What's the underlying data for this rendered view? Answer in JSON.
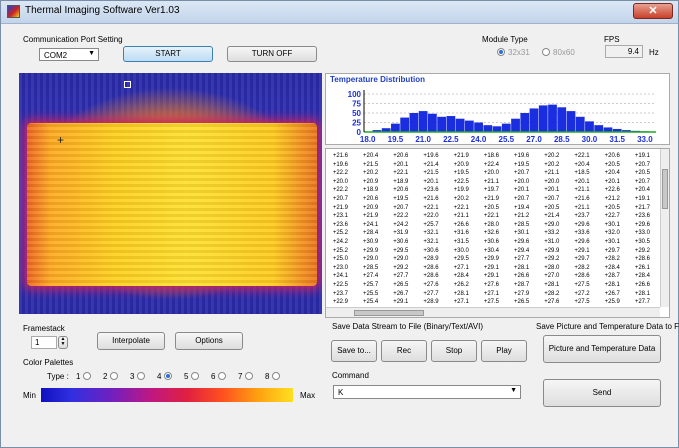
{
  "window": {
    "title": "Thermal Imaging Software   Ver1.03",
    "close_glyph": "✕"
  },
  "comm": {
    "section_label": "Communication Port Setting",
    "port": "COM2",
    "start_label": "START",
    "turn_off_label": "TURN OFF"
  },
  "module": {
    "label": "Module Type",
    "options": [
      "32x31",
      "80x60"
    ],
    "selected": "32x31"
  },
  "fps": {
    "label": "FPS",
    "value": "9.4",
    "unit": "Hz"
  },
  "histogram": {
    "title": "Temperature Distribution",
    "y_ticks": [
      "100",
      "75",
      "50",
      "25",
      "0"
    ],
    "x_ticks": [
      "18.0",
      "19.5",
      "21.0",
      "22.5",
      "24.0",
      "25.5",
      "27.0",
      "28.5",
      "30.0",
      "31.5",
      "33.0"
    ]
  },
  "chart_data": {
    "type": "bar",
    "title": "Temperature Distribution",
    "ylim": [
      0,
      100
    ],
    "x": [
      18.5,
      19.0,
      19.5,
      20.0,
      20.5,
      21.0,
      21.5,
      22.0,
      22.5,
      23.0,
      23.5,
      24.0,
      24.5,
      25.0,
      25.5,
      26.0,
      26.5,
      27.0,
      27.5,
      28.0,
      28.5,
      29.0,
      29.5,
      30.0,
      30.5,
      31.0,
      31.5,
      32.0,
      32.5,
      33.0
    ],
    "values": [
      5,
      10,
      22,
      38,
      50,
      55,
      48,
      40,
      42,
      35,
      30,
      25,
      18,
      15,
      22,
      35,
      50,
      62,
      70,
      72,
      65,
      55,
      40,
      28,
      18,
      12,
      8,
      5,
      3,
      2
    ],
    "colors": {
      "bar": "#1a2ee0",
      "grid": "#999999",
      "axis": "#000000",
      "baseline": "#22aa22"
    }
  },
  "temperatures": [
    [
      "+21.6",
      "+20.4",
      "+20.6",
      "+19.6",
      "+21.9",
      "+18.6",
      "+19.6",
      "+20.2",
      "+22.1",
      "+20.6",
      "+19.1"
    ],
    [
      "+19.6",
      "+21.5",
      "+20.1",
      "+21.4",
      "+20.9",
      "+22.4",
      "+19.5",
      "+20.2",
      "+20.4",
      "+20.5",
      "+20.7"
    ],
    [
      "+22.2",
      "+20.2",
      "+22.1",
      "+21.5",
      "+19.5",
      "+20.0",
      "+20.7",
      "+21.1",
      "+18.5",
      "+20.4",
      "+20.5"
    ],
    [
      "+20.0",
      "+20.9",
      "+18.9",
      "+20.1",
      "+22.5",
      "+21.1",
      "+20.0",
      "+20.0",
      "+20.1",
      "+20.1",
      "+20.7"
    ],
    [
      "+22.2",
      "+18.9",
      "+20.6",
      "+23.6",
      "+19.9",
      "+19.7",
      "+20.1",
      "+20.1",
      "+21.1",
      "+22.6",
      "+20.4"
    ],
    [
      "+20.7",
      "+20.6",
      "+19.5",
      "+21.6",
      "+20.2",
      "+21.9",
      "+20.7",
      "+20.7",
      "+21.6",
      "+21.2",
      "+19.1"
    ],
    [
      "+21.9",
      "+20.9",
      "+20.7",
      "+22.1",
      "+22.1",
      "+20.5",
      "+19.4",
      "+20.5",
      "+21.1",
      "+20.5",
      "+21.7"
    ],
    [
      "+23.1",
      "+21.9",
      "+22.2",
      "+22.0",
      "+21.1",
      "+22.1",
      "+21.2",
      "+21.4",
      "+23.7",
      "+22.7",
      "+23.6"
    ],
    [
      "+23.6",
      "+24.1",
      "+24.2",
      "+25.7",
      "+26.6",
      "+28.0",
      "+28.5",
      "+29.0",
      "+29.6",
      "+30.1",
      "+29.6"
    ],
    [
      "+25.2",
      "+28.4",
      "+31.9",
      "+32.1",
      "+31.6",
      "+32.6",
      "+30.1",
      "+33.2",
      "+33.6",
      "+32.0",
      "+33.0"
    ],
    [
      "+24.2",
      "+30.9",
      "+30.6",
      "+32.1",
      "+31.5",
      "+30.6",
      "+29.6",
      "+31.0",
      "+29.6",
      "+30.1",
      "+30.5"
    ],
    [
      "+25.2",
      "+29.9",
      "+29.5",
      "+30.6",
      "+30.0",
      "+30.4",
      "+29.4",
      "+29.9",
      "+29.1",
      "+29.7",
      "+29.2"
    ],
    [
      "+25.0",
      "+29.0",
      "+29.0",
      "+28.9",
      "+29.5",
      "+29.9",
      "+27.7",
      "+29.2",
      "+29.7",
      "+28.2",
      "+28.6"
    ],
    [
      "+23.0",
      "+28.5",
      "+29.2",
      "+28.6",
      "+27.1",
      "+29.1",
      "+28.1",
      "+28.0",
      "+28.2",
      "+28.4",
      "+26.1"
    ],
    [
      "+24.1",
      "+27.4",
      "+27.7",
      "+28.6",
      "+28.4",
      "+29.1",
      "+26.6",
      "+27.0",
      "+28.6",
      "+28.7",
      "+28.4"
    ],
    [
      "+22.5",
      "+25.7",
      "+26.5",
      "+27.6",
      "+26.2",
      "+27.6",
      "+28.7",
      "+28.1",
      "+27.5",
      "+28.1",
      "+26.6"
    ],
    [
      "+23.7",
      "+25.5",
      "+26.7",
      "+27.7",
      "+28.1",
      "+27.1",
      "+27.9",
      "+28.2",
      "+27.2",
      "+26.7",
      "+28.1"
    ],
    [
      "+22.9",
      "+25.4",
      "+29.1",
      "+28.9",
      "+27.1",
      "+27.5",
      "+26.5",
      "+27.6",
      "+27.5",
      "+25.9",
      "+27.7"
    ]
  ],
  "framestack": {
    "label": "Framestack",
    "value": "1"
  },
  "interpolate_label": "Interpolate",
  "options_label": "Options",
  "palettes": {
    "label": "Color Palettes",
    "type_label": "Type :",
    "options": [
      "1",
      "2",
      "3",
      "4",
      "5",
      "6",
      "7",
      "8"
    ],
    "selected": "4",
    "min_label": "Min",
    "max_label": "Max"
  },
  "save_stream": {
    "label": "Save Data Stream to File (Binary/Text/AVI)",
    "save_to_label": "Save to...",
    "rec_label": "Rec",
    "stop_label": "Stop",
    "play_label": "Play"
  },
  "save_picture": {
    "label": "Save Picture and Temperature Data to File",
    "button_label": "Picture and Temperature Data"
  },
  "command": {
    "label": "Command",
    "value": "K",
    "send_label": "Send"
  }
}
